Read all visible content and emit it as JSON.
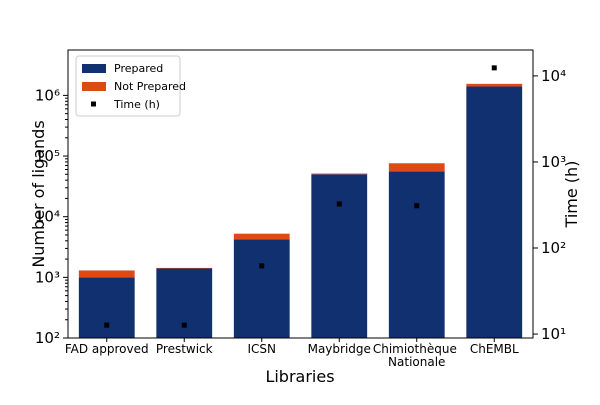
{
  "chart_data": {
    "type": "bar",
    "stacked": true,
    "log_scale": true,
    "xlabel": "Libraries",
    "ylabel": "Number of ligands",
    "y2label": "Time (h)",
    "categories": [
      "FAD approved",
      "Prestwick",
      "ICSN",
      "Maybridge",
      "Chimiothèque Nationale",
      "ChEMBL"
    ],
    "series": [
      {
        "name": "Prepared",
        "color": "#10306f",
        "values": [
          1000,
          1400,
          4200,
          50000,
          56000,
          1400000
        ]
      },
      {
        "name": "Not Prepared",
        "color": "#dd4a16",
        "values": [
          300,
          30,
          1050,
          1500,
          20000,
          150000
        ]
      },
      {
        "name": "Time (h)",
        "color": "#000000",
        "axis": "y2",
        "values": [
          12.7,
          12.7,
          62,
          325,
          310,
          12400
        ]
      }
    ],
    "ylim": [
      100,
      5600000
    ],
    "yticks": [
      {
        "value": 100,
        "label": "10²"
      },
      {
        "value": 1000,
        "label": "10³"
      },
      {
        "value": 10000,
        "label": "10⁴"
      },
      {
        "value": 100000,
        "label": "10⁵"
      },
      {
        "value": 1000000,
        "label": "10⁶"
      }
    ],
    "y2lim": [
      9,
      20000
    ],
    "y2ticks": [
      {
        "value": 10,
        "label": "10¹"
      },
      {
        "value": 100,
        "label": "10²"
      },
      {
        "value": 1000,
        "label": "10³"
      },
      {
        "value": 10000,
        "label": "10⁴"
      }
    ],
    "legend": "upper left"
  }
}
